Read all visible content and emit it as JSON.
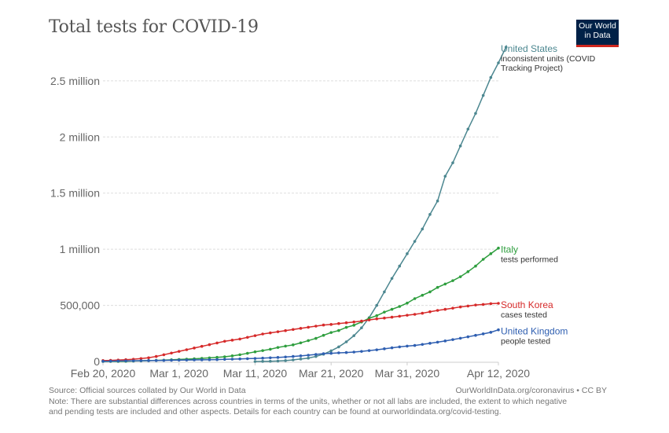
{
  "header": {
    "title": "Total tests for COVID-19",
    "logo_line1": "Our World",
    "logo_line2": "in Data"
  },
  "footer": {
    "source": "Source: Official sources collated by Our World in Data",
    "license": "OurWorldInData.org/coronavirus • CC BY",
    "note_line1": "Note: There are substantial differences across countries in terms of the units, whether or not all labs are included, the extent to which negative",
    "note_line2": "and pending tests are included and other aspects. Details for each country can be found at ourworldindata.org/covid-testing."
  },
  "chart_data": {
    "type": "line",
    "title": "Total tests for COVID-19",
    "xlabel": "",
    "ylabel": "",
    "x_start": "2020-02-20",
    "x_end": "2020-04-12",
    "x_range_days": [
      0,
      52
    ],
    "ylim": [
      0,
      2800000
    ],
    "grid": true,
    "legend_placement": "right (inline labels at line ends)",
    "x_ticks": [
      {
        "day": 0,
        "label": "Feb 20, 2020"
      },
      {
        "day": 10,
        "label": "Mar 1, 2020"
      },
      {
        "day": 20,
        "label": "Mar 11, 2020"
      },
      {
        "day": 30,
        "label": "Mar 21, 2020"
      },
      {
        "day": 40,
        "label": "Mar 31, 2020"
      },
      {
        "day": 52,
        "label": "Apr 12, 2020"
      }
    ],
    "y_ticks": [
      {
        "value": 0,
        "label": "0"
      },
      {
        "value": 500000,
        "label": "500,000"
      },
      {
        "value": 1000000,
        "label": "1 million"
      },
      {
        "value": 1500000,
        "label": "1.5 million"
      },
      {
        "value": 2000000,
        "label": "2 million"
      },
      {
        "value": 2500000,
        "label": "2.5 million"
      }
    ],
    "series": [
      {
        "name": "United States",
        "subtitle_line1": "inconsistent units (COVID",
        "subtitle_line2": "Tracking Project)",
        "color": "#4c8790",
        "start_day": 20,
        "values": [
          0,
          1000,
          2000,
          4000,
          8000,
          14000,
          22000,
          30000,
          45000,
          65000,
          95000,
          130000,
          175000,
          230000,
          300000,
          390000,
          500000,
          620000,
          740000,
          850000,
          960000,
          1070000,
          1180000,
          1310000,
          1430000,
          1650000,
          1770000,
          1920000,
          2070000,
          2210000,
          2370000,
          2530000,
          2660000,
          2800000
        ]
      },
      {
        "name": "Italy",
        "subtitle_line1": "tests performed",
        "subtitle_line2": "",
        "color": "#2e9e3e",
        "start_day": 0,
        "values": [
          0,
          500,
          1000,
          2000,
          4000,
          6000,
          8000,
          10000,
          12000,
          15000,
          18000,
          21000,
          24000,
          28000,
          32000,
          37000,
          42000,
          50000,
          60000,
          73000,
          86000,
          97000,
          109000,
          125000,
          137000,
          148000,
          166000,
          186000,
          206000,
          233000,
          258000,
          276000,
          304000,
          323000,
          352000,
          385000,
          408000,
          440000,
          465000,
          490000,
          520000,
          560000,
          590000,
          620000,
          660000,
          690000,
          720000,
          755000,
          800000,
          850000,
          910000,
          960000,
          1010000
        ]
      },
      {
        "name": "South Korea",
        "subtitle_line1": "cases tested",
        "subtitle_line2": "",
        "color": "#d62a2a",
        "start_day": 0,
        "values": [
          8000,
          10000,
          13000,
          16000,
          20000,
          26000,
          33000,
          45000,
          60000,
          75000,
          90000,
          105000,
          120000,
          135000,
          150000,
          165000,
          180000,
          190000,
          200000,
          215000,
          230000,
          245000,
          255000,
          265000,
          275000,
          285000,
          295000,
          305000,
          315000,
          325000,
          330000,
          338000,
          345000,
          352000,
          360000,
          370000,
          380000,
          387000,
          395000,
          403000,
          412000,
          420000,
          430000,
          443000,
          455000,
          465000,
          475000,
          486000,
          494000,
          503000,
          508000,
          515000,
          518000
        ]
      },
      {
        "name": "United Kingdom",
        "subtitle_line1": "people tested",
        "subtitle_line2": "",
        "color": "#2f5fb1",
        "start_day": 0,
        "values": [
          2000,
          3000,
          4000,
          5000,
          6000,
          7000,
          8000,
          9000,
          10000,
          11000,
          12000,
          13000,
          14000,
          15000,
          16000,
          17000,
          19000,
          21000,
          23000,
          25000,
          27000,
          30000,
          33000,
          36000,
          40000,
          45000,
          50000,
          56000,
          63000,
          70000,
          73000,
          77000,
          80000,
          84000,
          90000,
          97000,
          104000,
          113000,
          122000,
          130000,
          137000,
          143000,
          152000,
          162000,
          172000,
          183000,
          195000,
          207000,
          220000,
          233000,
          246000,
          260000,
          282000
        ]
      }
    ]
  }
}
